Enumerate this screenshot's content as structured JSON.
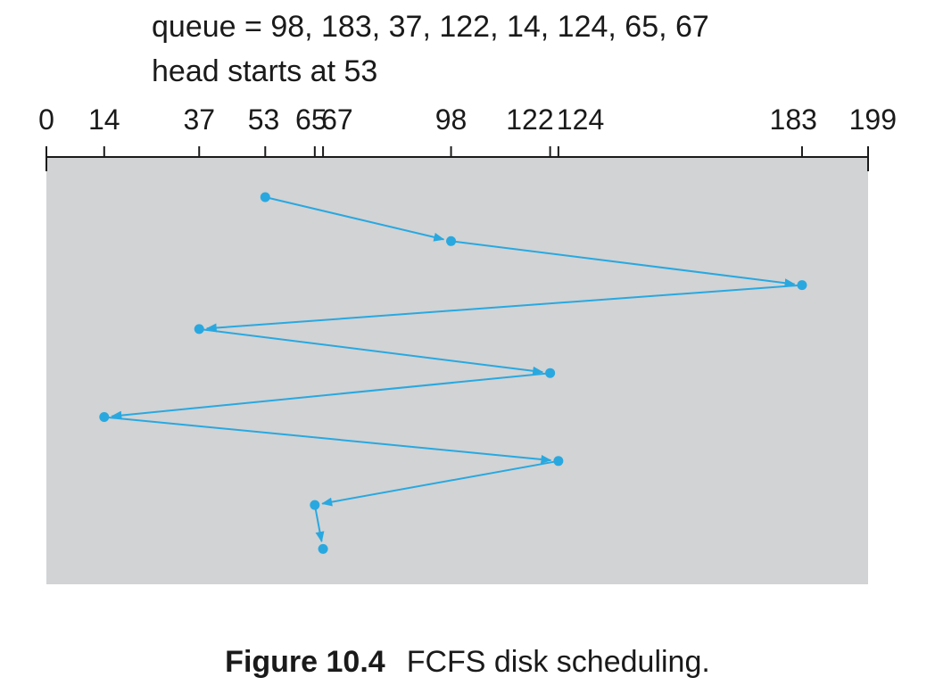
{
  "header": {
    "queue_label": "queue",
    "queue_equals": "=",
    "queue_values_text": "98, 183, 37, 122, 14, 124, 65, 67",
    "head_text": "head starts at 53"
  },
  "axis": {
    "min": 0,
    "max": 199,
    "ticks": [
      0,
      14,
      37,
      53,
      65,
      67,
      98,
      122,
      124,
      183,
      199
    ],
    "tick_labels": [
      "0",
      "14",
      "37",
      "53",
      "65",
      "67",
      "98",
      "122",
      "124",
      "183",
      "199"
    ]
  },
  "schedule": {
    "algorithm": "FCFS",
    "head_start": 53,
    "queue": [
      98,
      183,
      37,
      122,
      14,
      124,
      65,
      67
    ],
    "sequence": [
      53,
      98,
      183,
      37,
      122,
      14,
      124,
      65,
      67
    ]
  },
  "colors": {
    "panel_background": "#d1d3d4",
    "path_color": "#29a8e0",
    "axis_color": "#1a1a1a",
    "text_color": "#1a1a1a"
  },
  "caption": {
    "label": "Figure 10.4",
    "text": "FCFS disk scheduling."
  }
}
